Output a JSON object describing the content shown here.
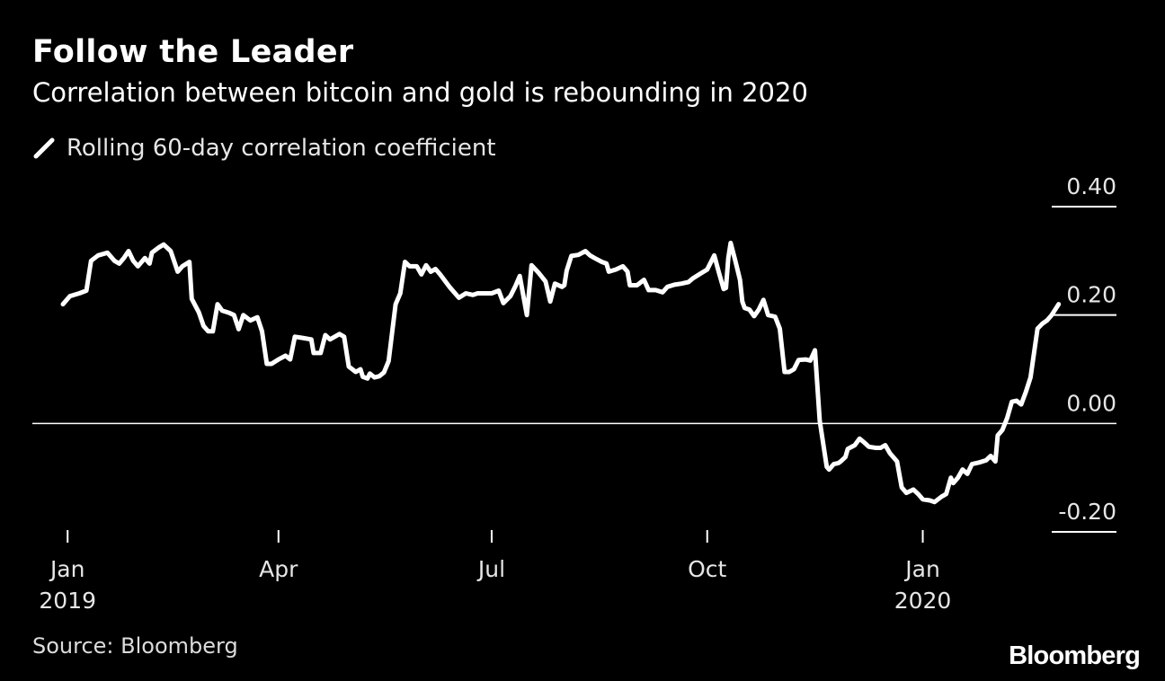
{
  "header": {
    "title": "Follow the Leader",
    "subtitle": "Correlation between bitcoin and gold is rebounding in 2020"
  },
  "legend": {
    "label": "Rolling 60-day correlation coefficient",
    "color": "#ffffff"
  },
  "footer": {
    "source": "Source: Bloomberg",
    "brand": "Bloomberg"
  },
  "colors": {
    "background": "#000000",
    "line": "#ffffff",
    "zero_line": "#ffffff",
    "text": "#e6e6e6"
  },
  "chart_data": {
    "type": "line",
    "title": "Follow the Leader",
    "subtitle": "Correlation between bitcoin and gold is rebounding in 2020",
    "xlabel": "",
    "ylabel": "",
    "ylim": [
      -0.2,
      0.4
    ],
    "xlim": [
      "2018-12-30",
      "2020-02-12"
    ],
    "grid": false,
    "y_ticks": [
      {
        "value": 0.4,
        "label": "0.40"
      },
      {
        "value": 0.2,
        "label": "0.20"
      },
      {
        "value": 0.0,
        "label": "0.00"
      },
      {
        "value": -0.2,
        "label": "-0.20"
      }
    ],
    "x_ticks": [
      {
        "date": "2019-01-01",
        "label": "Jan",
        "year": "2019"
      },
      {
        "date": "2019-04-01",
        "label": "Apr",
        "year": ""
      },
      {
        "date": "2019-07-01",
        "label": "Jul",
        "year": ""
      },
      {
        "date": "2019-10-01",
        "label": "Oct",
        "year": ""
      },
      {
        "date": "2020-01-01",
        "label": "Jan",
        "year": "2020"
      }
    ],
    "series": [
      {
        "name": "Rolling 60-day correlation coefficient",
        "points": [
          {
            "date": "2018-12-30",
            "y": 0.22
          },
          {
            "date": "2019-01-02",
            "y": 0.235
          },
          {
            "date": "2019-01-06",
            "y": 0.24
          },
          {
            "date": "2019-01-09",
            "y": 0.245
          },
          {
            "date": "2019-01-11",
            "y": 0.3
          },
          {
            "date": "2019-01-14",
            "y": 0.31
          },
          {
            "date": "2019-01-18",
            "y": 0.315
          },
          {
            "date": "2019-01-21",
            "y": 0.3
          },
          {
            "date": "2019-01-23",
            "y": 0.295
          },
          {
            "date": "2019-01-25",
            "y": 0.305
          },
          {
            "date": "2019-01-27",
            "y": 0.318
          },
          {
            "date": "2019-01-29",
            "y": 0.3
          },
          {
            "date": "2019-01-31",
            "y": 0.29
          },
          {
            "date": "2019-02-03",
            "y": 0.305
          },
          {
            "date": "2019-02-05",
            "y": 0.295
          },
          {
            "date": "2019-02-06",
            "y": 0.315
          },
          {
            "date": "2019-02-09",
            "y": 0.325
          },
          {
            "date": "2019-02-11",
            "y": 0.33
          },
          {
            "date": "2019-02-14",
            "y": 0.318
          },
          {
            "date": "2019-02-17",
            "y": 0.28
          },
          {
            "date": "2019-02-19",
            "y": 0.29
          },
          {
            "date": "2019-02-22",
            "y": 0.298
          },
          {
            "date": "2019-02-23",
            "y": 0.23
          },
          {
            "date": "2019-02-26",
            "y": 0.205
          },
          {
            "date": "2019-02-28",
            "y": 0.18
          },
          {
            "date": "2019-03-02",
            "y": 0.17
          },
          {
            "date": "2019-03-04",
            "y": 0.17
          },
          {
            "date": "2019-03-06",
            "y": 0.22
          },
          {
            "date": "2019-03-08",
            "y": 0.208
          },
          {
            "date": "2019-03-11",
            "y": 0.204
          },
          {
            "date": "2019-03-13",
            "y": 0.2
          },
          {
            "date": "2019-03-15",
            "y": 0.174
          },
          {
            "date": "2019-03-17",
            "y": 0.2
          },
          {
            "date": "2019-03-20",
            "y": 0.19
          },
          {
            "date": "2019-03-23",
            "y": 0.196
          },
          {
            "date": "2019-03-25",
            "y": 0.17
          },
          {
            "date": "2019-03-27",
            "y": 0.11
          },
          {
            "date": "2019-03-29",
            "y": 0.11
          },
          {
            "date": "2019-04-01",
            "y": 0.118
          },
          {
            "date": "2019-04-04",
            "y": 0.125
          },
          {
            "date": "2019-04-06",
            "y": 0.118
          },
          {
            "date": "2019-04-08",
            "y": 0.16
          },
          {
            "date": "2019-04-11",
            "y": 0.158
          },
          {
            "date": "2019-04-15",
            "y": 0.155
          },
          {
            "date": "2019-04-16",
            "y": 0.13
          },
          {
            "date": "2019-04-19",
            "y": 0.13
          },
          {
            "date": "2019-04-21",
            "y": 0.163
          },
          {
            "date": "2019-04-23",
            "y": 0.155
          },
          {
            "date": "2019-04-27",
            "y": 0.165
          },
          {
            "date": "2019-04-29",
            "y": 0.16
          },
          {
            "date": "2019-05-01",
            "y": 0.105
          },
          {
            "date": "2019-05-04",
            "y": 0.095
          },
          {
            "date": "2019-05-06",
            "y": 0.1
          },
          {
            "date": "2019-05-07",
            "y": 0.086
          },
          {
            "date": "2019-05-09",
            "y": 0.083
          },
          {
            "date": "2019-05-10",
            "y": 0.092
          },
          {
            "date": "2019-05-12",
            "y": 0.085
          },
          {
            "date": "2019-05-14",
            "y": 0.087
          },
          {
            "date": "2019-05-16",
            "y": 0.094
          },
          {
            "date": "2019-05-18",
            "y": 0.115
          },
          {
            "date": "2019-05-21",
            "y": 0.22
          },
          {
            "date": "2019-05-23",
            "y": 0.24
          },
          {
            "date": "2019-05-25",
            "y": 0.298
          },
          {
            "date": "2019-05-27",
            "y": 0.29
          },
          {
            "date": "2019-05-30",
            "y": 0.29
          },
          {
            "date": "2019-06-01",
            "y": 0.275
          },
          {
            "date": "2019-06-03",
            "y": 0.292
          },
          {
            "date": "2019-06-05",
            "y": 0.28
          },
          {
            "date": "2019-06-07",
            "y": 0.285
          },
          {
            "date": "2019-06-09",
            "y": 0.275
          },
          {
            "date": "2019-06-13",
            "y": 0.252
          },
          {
            "date": "2019-06-17",
            "y": 0.232
          },
          {
            "date": "2019-06-20",
            "y": 0.24
          },
          {
            "date": "2019-06-23",
            "y": 0.237
          },
          {
            "date": "2019-06-25",
            "y": 0.24
          },
          {
            "date": "2019-06-28",
            "y": 0.24
          },
          {
            "date": "2019-07-01",
            "y": 0.24
          },
          {
            "date": "2019-07-04",
            "y": 0.245
          },
          {
            "date": "2019-07-06",
            "y": 0.222
          },
          {
            "date": "2019-07-09",
            "y": 0.235
          },
          {
            "date": "2019-07-11",
            "y": 0.252
          },
          {
            "date": "2019-07-13",
            "y": 0.272
          },
          {
            "date": "2019-07-16",
            "y": 0.2
          },
          {
            "date": "2019-07-18",
            "y": 0.292
          },
          {
            "date": "2019-07-21",
            "y": 0.278
          },
          {
            "date": "2019-07-24",
            "y": 0.262
          },
          {
            "date": "2019-07-26",
            "y": 0.225
          },
          {
            "date": "2019-07-28",
            "y": 0.258
          },
          {
            "date": "2019-07-31",
            "y": 0.252
          },
          {
            "date": "2019-08-01",
            "y": 0.255
          },
          {
            "date": "2019-08-02",
            "y": 0.282
          },
          {
            "date": "2019-08-04",
            "y": 0.309
          },
          {
            "date": "2019-08-07",
            "y": 0.311
          },
          {
            "date": "2019-08-10",
            "y": 0.318
          },
          {
            "date": "2019-08-12",
            "y": 0.31
          },
          {
            "date": "2019-08-14",
            "y": 0.305
          },
          {
            "date": "2019-08-17",
            "y": 0.298
          },
          {
            "date": "2019-08-19",
            "y": 0.295
          },
          {
            "date": "2019-08-20",
            "y": 0.28
          },
          {
            "date": "2019-08-23",
            "y": 0.284
          },
          {
            "date": "2019-08-26",
            "y": 0.29
          },
          {
            "date": "2019-08-28",
            "y": 0.28
          },
          {
            "date": "2019-08-29",
            "y": 0.255
          },
          {
            "date": "2019-09-01",
            "y": 0.255
          },
          {
            "date": "2019-09-04",
            "y": 0.265
          },
          {
            "date": "2019-09-06",
            "y": 0.246
          },
          {
            "date": "2019-09-09",
            "y": 0.246
          },
          {
            "date": "2019-09-12",
            "y": 0.242
          },
          {
            "date": "2019-09-14",
            "y": 0.252
          },
          {
            "date": "2019-09-17",
            "y": 0.256
          },
          {
            "date": "2019-09-20",
            "y": 0.258
          },
          {
            "date": "2019-09-23",
            "y": 0.261
          },
          {
            "date": "2019-09-25",
            "y": 0.268
          },
          {
            "date": "2019-09-28",
            "y": 0.276
          },
          {
            "date": "2019-10-01",
            "y": 0.284
          },
          {
            "date": "2019-10-04",
            "y": 0.31
          },
          {
            "date": "2019-10-06",
            "y": 0.278
          },
          {
            "date": "2019-10-08",
            "y": 0.248
          },
          {
            "date": "2019-10-09",
            "y": 0.25
          },
          {
            "date": "2019-10-10",
            "y": 0.305
          },
          {
            "date": "2019-10-11",
            "y": 0.333
          },
          {
            "date": "2019-10-13",
            "y": 0.3
          },
          {
            "date": "2019-10-15",
            "y": 0.265
          },
          {
            "date": "2019-10-16",
            "y": 0.225
          },
          {
            "date": "2019-10-17",
            "y": 0.213
          },
          {
            "date": "2019-10-19",
            "y": 0.21
          },
          {
            "date": "2019-10-21",
            "y": 0.198
          },
          {
            "date": "2019-10-23",
            "y": 0.21
          },
          {
            "date": "2019-10-25",
            "y": 0.228
          },
          {
            "date": "2019-10-27",
            "y": 0.2
          },
          {
            "date": "2019-10-30",
            "y": 0.197
          },
          {
            "date": "2019-11-01",
            "y": 0.175
          },
          {
            "date": "2019-11-03",
            "y": 0.095
          },
          {
            "date": "2019-11-05",
            "y": 0.095
          },
          {
            "date": "2019-11-07",
            "y": 0.1
          },
          {
            "date": "2019-11-09",
            "y": 0.117
          },
          {
            "date": "2019-11-12",
            "y": 0.118
          },
          {
            "date": "2019-11-14",
            "y": 0.116
          },
          {
            "date": "2019-11-16",
            "y": 0.135
          },
          {
            "date": "2019-11-18",
            "y": 0.005
          },
          {
            "date": "2019-11-21",
            "y": -0.08
          },
          {
            "date": "2019-11-22",
            "y": -0.085
          },
          {
            "date": "2019-11-24",
            "y": -0.075
          },
          {
            "date": "2019-11-26",
            "y": -0.073
          },
          {
            "date": "2019-11-27",
            "y": -0.07
          },
          {
            "date": "2019-11-29",
            "y": -0.062
          },
          {
            "date": "2019-11-30",
            "y": -0.047
          },
          {
            "date": "2019-12-03",
            "y": -0.04
          },
          {
            "date": "2019-12-05",
            "y": -0.028
          },
          {
            "date": "2019-12-07",
            "y": -0.035
          },
          {
            "date": "2019-12-09",
            "y": -0.043
          },
          {
            "date": "2019-12-12",
            "y": -0.045
          },
          {
            "date": "2019-12-14",
            "y": -0.045
          },
          {
            "date": "2019-12-16",
            "y": -0.04
          },
          {
            "date": "2019-12-18",
            "y": -0.055
          },
          {
            "date": "2019-12-21",
            "y": -0.07
          },
          {
            "date": "2019-12-23",
            "y": -0.118
          },
          {
            "date": "2019-12-25",
            "y": -0.128
          },
          {
            "date": "2019-12-28",
            "y": -0.122
          },
          {
            "date": "2019-12-30",
            "y": -0.13
          },
          {
            "date": "2020-01-01",
            "y": -0.14
          },
          {
            "date": "2020-01-04",
            "y": -0.142
          },
          {
            "date": "2020-01-06",
            "y": -0.145
          },
          {
            "date": "2020-01-09",
            "y": -0.135
          },
          {
            "date": "2020-01-11",
            "y": -0.13
          },
          {
            "date": "2020-01-13",
            "y": -0.1
          },
          {
            "date": "2020-01-14",
            "y": -0.11
          },
          {
            "date": "2020-01-16",
            "y": -0.1
          },
          {
            "date": "2020-01-18",
            "y": -0.085
          },
          {
            "date": "2020-01-20",
            "y": -0.093
          },
          {
            "date": "2020-01-22",
            "y": -0.075
          },
          {
            "date": "2020-01-25",
            "y": -0.072
          },
          {
            "date": "2020-01-28",
            "y": -0.068
          },
          {
            "date": "2020-01-30",
            "y": -0.06
          },
          {
            "date": "2020-02-01",
            "y": -0.07
          },
          {
            "date": "2020-02-02",
            "y": -0.022
          },
          {
            "date": "2020-02-04",
            "y": -0.012
          },
          {
            "date": "2020-02-06",
            "y": 0.01
          },
          {
            "date": "2020-02-08",
            "y": 0.04
          },
          {
            "date": "2020-02-10",
            "y": 0.042
          },
          {
            "date": "2020-02-12",
            "y": 0.035
          },
          {
            "date": "2020-02-14",
            "y": 0.058
          },
          {
            "date": "2020-02-16",
            "y": 0.085
          },
          {
            "date": "2020-02-19",
            "y": 0.175
          },
          {
            "date": "2020-02-21",
            "y": 0.184
          },
          {
            "date": "2020-02-23",
            "y": 0.19
          },
          {
            "date": "2020-02-25",
            "y": 0.2
          },
          {
            "date": "2020-02-28",
            "y": 0.22
          }
        ]
      }
    ]
  }
}
